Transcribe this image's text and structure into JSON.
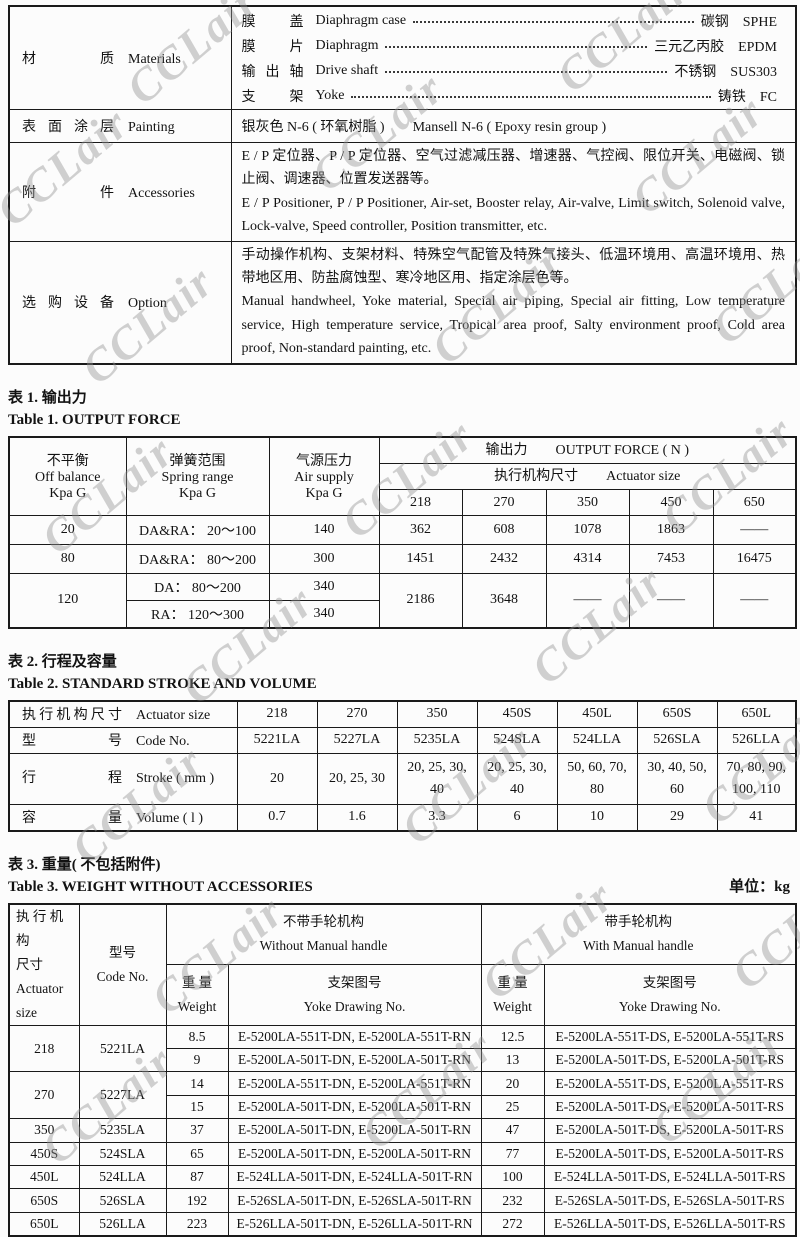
{
  "watermark": {
    "text": "CCLair"
  },
  "spec": {
    "materials": {
      "label_zh": "材质",
      "label_en": "Materials",
      "items": [
        {
          "name_zh": "膜盖",
          "name_en": "Diaphragm case",
          "value": "碳钢　SPHE"
        },
        {
          "name_zh": "膜片",
          "name_en": "Diaphragm",
          "value": "三元乙丙胶　EPDM"
        },
        {
          "name_zh": "输出轴",
          "name_en": "Drive shaft",
          "value": "不锈钢　SUS303"
        },
        {
          "name_zh": "支架",
          "name_en": "Yoke",
          "value": "铸铁　FC"
        }
      ]
    },
    "painting": {
      "label_zh": "表面涂层",
      "label_en": "Painting",
      "value": "银灰色 N-6 ( 环氧树脂 )　　Mansell N-6 ( Epoxy resin group )"
    },
    "accessories": {
      "label_zh": "附件",
      "label_en": "Accessories",
      "text_zh": "E / P 定位器、P / P 定位器、空气过滤减压器、增速器、气控阀、限位开关、电磁阀、锁止阀、调速器、位置发送器等。",
      "text_en": "E / P Positioner, P / P Positioner, Air-set, Booster relay, Air-valve, Limit switch, Solenoid valve, Lock-valve, Speed controller, Position transmitter, etc."
    },
    "option": {
      "label_zh": "选购设备",
      "label_en": "Option",
      "text_zh": "手动操作机构、支架材料、特殊空气配管及特殊气接头、低温环境用、高温环境用、热带地区用、防盐腐蚀型、寒冷地区用、指定涂层色等。",
      "text_en": "Manual handwheel, Yoke material, Special air piping, Special air fitting, Low temperature service, High temperature service, Tropical area proof, Salty environment proof, Cold area proof, Non-standard painting, etc."
    }
  },
  "table1": {
    "title_zh": "表 1.  输出力",
    "title_en": "Table 1.  OUTPUT FORCE",
    "col1": [
      "不平衡",
      "Off balance",
      "Kpa G"
    ],
    "col2": [
      "弹簧范围",
      "Spring range",
      "Kpa G"
    ],
    "col3": [
      "气源压力",
      "Air supply",
      "Kpa G"
    ],
    "group_title": "输出力　　OUTPUT FORCE ( N )",
    "group_sub": "执行机构尺寸　　Actuator size",
    "sizes": [
      "218",
      "270",
      "350",
      "450",
      "650"
    ],
    "rows": [
      {
        "off": "20",
        "spring": "DA&RA： 20～100",
        "air": "140",
        "forces": [
          "362",
          "608",
          "1078",
          "1863",
          "——"
        ]
      },
      {
        "off": "80",
        "spring": "DA&RA： 80～200",
        "air": "300",
        "forces": [
          "1451",
          "2432",
          "4314",
          "7453",
          "16475"
        ]
      },
      {
        "off": "120",
        "sub": [
          {
            "spring": "DA： 80～200",
            "air": "340"
          },
          {
            "spring": "RA： 120～300",
            "air": "340"
          }
        ],
        "forces": [
          "2186",
          "3648",
          "——",
          "——",
          "——"
        ]
      }
    ]
  },
  "table2": {
    "title_zh": "表 2.  行程及容量",
    "title_en": "Table 2.  STANDARD STROKE AND VOLUME",
    "rows": [
      {
        "label_zh": "执行机构尺寸",
        "label_en": "Actuator size",
        "values": [
          "218",
          "270",
          "350",
          "450S",
          "450L",
          "650S",
          "650L"
        ]
      },
      {
        "label_zh": "型号",
        "label_en": "Code No.",
        "values": [
          "5221LA",
          "5227LA",
          "5235LA",
          "524SLA",
          "524LLA",
          "526SLA",
          "526LLA"
        ]
      },
      {
        "label_zh": "行程",
        "label_en": "Stroke ( mm )",
        "values": [
          "20",
          "20, 25, 30",
          "20, 25, 30, 40",
          "20, 25, 30, 40",
          "50, 60, 70, 80",
          "30, 40, 50, 60",
          "70, 80, 90, 100, 110"
        ]
      },
      {
        "label_zh": "容量",
        "label_en": "Volume ( l )",
        "values": [
          "0.7",
          "1.6",
          "3.3",
          "6",
          "10",
          "29",
          "41"
        ]
      }
    ]
  },
  "table3": {
    "title_zh": "表 3.  重量( 不包括附件)",
    "title_en": "Table 3.  WEIGHT WITHOUT ACCESSORIES",
    "unit": "单位：kg",
    "head": {
      "col1": [
        "执 行 机 构",
        "尺寸",
        "Actuator",
        "size"
      ],
      "col2": [
        "型号",
        "Code No."
      ],
      "group1": [
        "不带手轮机构",
        "Without Manual handle"
      ],
      "group2": [
        "带手轮机构",
        "With Manual handle"
      ],
      "weight": [
        "重 量",
        "Weight"
      ],
      "yoke": [
        "支架图号",
        "Yoke Drawing No."
      ]
    },
    "rows": [
      {
        "size": "218",
        "code": "5221LA",
        "span": 2,
        "w1": "8.5",
        "y1": "E-5200LA-551T-DN, E-5200LA-551T-RN",
        "w2": "12.5",
        "y2": "E-5200LA-551T-DS, E-5200LA-551T-RS"
      },
      {
        "w1": "9",
        "y1": "E-5200LA-501T-DN, E-5200LA-501T-RN",
        "w2": "13",
        "y2": "E-5200LA-501T-DS, E-5200LA-501T-RS"
      },
      {
        "size": "270",
        "code": "5227LA",
        "span": 2,
        "w1": "14",
        "y1": "E-5200LA-551T-DN, E-5200LA-551T-RN",
        "w2": "20",
        "y2": "E-5200LA-551T-DS, E-5200LA-551T-RS"
      },
      {
        "w1": "15",
        "y1": "E-5200LA-501T-DN, E-5200LA-501T-RN",
        "w2": "25",
        "y2": "E-5200LA-501T-DS, E-5200LA-501T-RS"
      },
      {
        "size": "350",
        "code": "5235LA",
        "span": 1,
        "w1": "37",
        "y1": "E-5200LA-501T-DN, E-5200LA-501T-RN",
        "w2": "47",
        "y2": "E-5200LA-501T-DS, E-5200LA-501T-RS"
      },
      {
        "size": "450S",
        "code": "524SLA",
        "span": 1,
        "w1": "65",
        "y1": "E-5200LA-501T-DN, E-5200LA-501T-RN",
        "w2": "77",
        "y2": "E-5200LA-501T-DS, E-5200LA-501T-RS"
      },
      {
        "size": "450L",
        "code": "524LLA",
        "span": 1,
        "w1": "87",
        "y1": "E-524LLA-501T-DN, E-524LLA-501T-RN",
        "w2": "100",
        "y2": "E-524LLA-501T-DS, E-524LLA-501T-RS"
      },
      {
        "size": "650S",
        "code": "526SLA",
        "span": 1,
        "w1": "192",
        "y1": "E-526SLA-501T-DN, E-526SLA-501T-RN",
        "w2": "232",
        "y2": "E-526SLA-501T-DS, E-526SLA-501T-RS"
      },
      {
        "size": "650L",
        "code": "526LLA",
        "span": 1,
        "w1": "223",
        "y1": "E-526LLA-501T-DN, E-526LLA-501T-RN",
        "w2": "272",
        "y2": "E-526LLA-501T-DS, E-526LLA-501T-RS"
      }
    ]
  }
}
